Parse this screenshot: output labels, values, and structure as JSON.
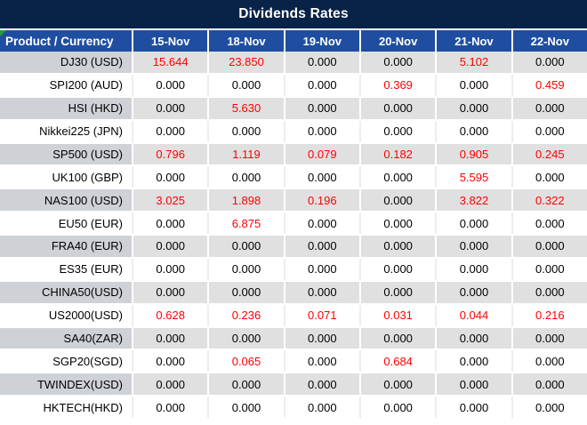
{
  "title": "Dividends Rates",
  "colors": {
    "title_bar": "#072348",
    "header_blue": "#1f4ea1",
    "gray_product_cell": "#ced2d6",
    "gray_value_cell": "#e0e0e0",
    "white_row_gridline": "#ededed",
    "value_red": "#ff0000",
    "value_black": "#000000",
    "corner_flag_green": "#21a038",
    "header_text": "#ffffff"
  },
  "table": {
    "header": {
      "product_label": "Product / Currency",
      "dates": [
        "15-Nov",
        "18-Nov",
        "19-Nov",
        "20-Nov",
        "21-Nov",
        "22-Nov"
      ]
    },
    "rows": [
      {
        "product": "DJ30 (USD)",
        "values": [
          "15.644",
          "23.850",
          "0.000",
          "0.000",
          "5.102",
          "0.000"
        ]
      },
      {
        "product": "SPI200 (AUD)",
        "values": [
          "0.000",
          "0.000",
          "0.000",
          "0.369",
          "0.000",
          "0.459"
        ]
      },
      {
        "product": "HSI (HKD)",
        "values": [
          "0.000",
          "5.630",
          "0.000",
          "0.000",
          "0.000",
          "0.000"
        ]
      },
      {
        "product": "Nikkei225 (JPN)",
        "values": [
          "0.000",
          "0.000",
          "0.000",
          "0.000",
          "0.000",
          "0.000"
        ]
      },
      {
        "product": "SP500 (USD)",
        "values": [
          "0.796",
          "1.119",
          "0.079",
          "0.182",
          "0.905",
          "0.245"
        ]
      },
      {
        "product": "UK100 (GBP)",
        "values": [
          "0.000",
          "0.000",
          "0.000",
          "0.000",
          "5.595",
          "0.000"
        ]
      },
      {
        "product": "NAS100 (USD)",
        "values": [
          "3.025",
          "1.898",
          "0.196",
          "0.000",
          "3.822",
          "0.322"
        ]
      },
      {
        "product": "EU50 (EUR)",
        "values": [
          "0.000",
          "6.875",
          "0.000",
          "0.000",
          "0.000",
          "0.000"
        ]
      },
      {
        "product": "FRA40 (EUR)",
        "values": [
          "0.000",
          "0.000",
          "0.000",
          "0.000",
          "0.000",
          "0.000"
        ]
      },
      {
        "product": "ES35 (EUR)",
        "values": [
          "0.000",
          "0.000",
          "0.000",
          "0.000",
          "0.000",
          "0.000"
        ]
      },
      {
        "product": "CHINA50(USD)",
        "values": [
          "0.000",
          "0.000",
          "0.000",
          "0.000",
          "0.000",
          "0.000"
        ]
      },
      {
        "product": "US2000(USD)",
        "values": [
          "0.628",
          "0.236",
          "0.071",
          "0.031",
          "0.044",
          "0.216"
        ]
      },
      {
        "product": "SA40(ZAR)",
        "values": [
          "0.000",
          "0.000",
          "0.000",
          "0.000",
          "0.000",
          "0.000"
        ]
      },
      {
        "product": "SGP20(SGD)",
        "values": [
          "0.000",
          "0.065",
          "0.000",
          "0.684",
          "0.000",
          "0.000"
        ]
      },
      {
        "product": "TWINDEX(USD)",
        "values": [
          "0.000",
          "0.000",
          "0.000",
          "0.000",
          "0.000",
          "0.000"
        ]
      },
      {
        "product": "HKTECH(HKD)",
        "values": [
          "0.000",
          "0.000",
          "0.000",
          "0.000",
          "0.000",
          "0.000"
        ]
      }
    ]
  }
}
